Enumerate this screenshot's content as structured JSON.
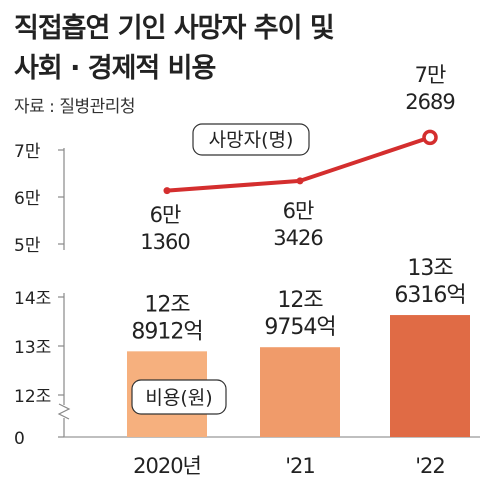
{
  "title_line1": "직접흡연 기인 사망자 추이 및",
  "title_line2": "사회 · 경제적 비용",
  "source": "자료 : 질병관리청",
  "chart_data": {
    "type": "bar+line",
    "categories": [
      "2020년",
      "'21",
      "'22"
    ],
    "series": [
      {
        "name": "사망자(명)",
        "kind": "line",
        "values": [
          61360,
          63426,
          72689
        ],
        "value_labels": [
          [
            "6만",
            "1360"
          ],
          [
            "6만",
            "3426"
          ],
          [
            "7만",
            "2689"
          ]
        ],
        "axis_ticks": [
          "7만",
          "6만",
          "5만"
        ],
        "axis_tick_values": [
          70000,
          60000,
          50000
        ],
        "color": "#d42e2e"
      },
      {
        "name": "비용(원)",
        "kind": "bar",
        "values": [
          12.8912,
          12.9754,
          13.6316
        ],
        "value_labels": [
          [
            "12조",
            "8912억"
          ],
          [
            "12조",
            "9754억"
          ],
          [
            "13조",
            "6316억"
          ]
        ],
        "axis_ticks": [
          "14조",
          "13조",
          "12조",
          "0"
        ],
        "axis_tick_values": [
          14,
          13,
          12,
          0
        ],
        "axis_break": true,
        "colors": [
          "#f6b07e",
          "#f09b6a",
          "#e06b45"
        ]
      }
    ],
    "axis_color": "#888888"
  }
}
